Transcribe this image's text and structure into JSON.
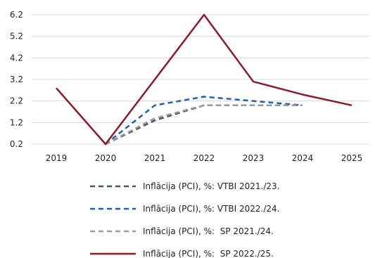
{
  "chart_data": {
    "type": "line",
    "title": "",
    "xlabel": "",
    "ylabel": "",
    "x": [
      "2019",
      "2020",
      "2021",
      "2022",
      "2023",
      "2024",
      "2025"
    ],
    "y_ticks": [
      "0.2",
      "1.2",
      "2.2",
      "3.2",
      "4.2",
      "5.2",
      "6.2"
    ],
    "ylim": [
      0.2,
      6.2
    ],
    "grid": "horizontal",
    "legend_position": "bottom",
    "series": [
      {
        "name": "Inflācija (PCI), %: VTBI 2021./23.",
        "color": "#44546a",
        "style": "dashed",
        "values": [
          null,
          0.2,
          1.3,
          2.0,
          2.0,
          2.0,
          null
        ]
      },
      {
        "name": "Inflācija (PCI), %: VTBI 2022./24.",
        "color": "#1f5fb4",
        "style": "dashed",
        "values": [
          null,
          0.2,
          2.0,
          2.4,
          2.2,
          2.0,
          null
        ]
      },
      {
        "name": "Inflācija (PCI), %:  SP 2021./24.",
        "color": "#9a9a9a",
        "style": "dashed",
        "values": [
          null,
          0.2,
          1.4,
          2.0,
          2.0,
          2.0,
          null
        ]
      },
      {
        "name": "Inflācija (PCI), %:  SP 2022./25.",
        "color": "#8b1a2b",
        "style": "solid",
        "values": [
          2.8,
          0.2,
          3.2,
          6.2,
          3.1,
          2.5,
          2.0
        ]
      }
    ]
  }
}
